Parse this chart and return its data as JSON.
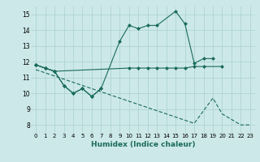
{
  "xlabel": "Humidex (Indice chaleur)",
  "bg_color": "#cce8e8",
  "grid_color": "#aad0d0",
  "line_color": "#1a6b5a",
  "xlim": [
    -0.5,
    23.5
  ],
  "ylim": [
    7.5,
    15.5
  ],
  "yticks": [
    8,
    9,
    10,
    11,
    12,
    13,
    14,
    15
  ],
  "xticks": [
    0,
    1,
    2,
    3,
    4,
    5,
    6,
    7,
    8,
    9,
    10,
    11,
    12,
    13,
    14,
    15,
    16,
    17,
    18,
    19,
    20,
    21,
    22,
    23
  ],
  "line1_x": [
    0,
    1,
    2,
    3,
    4,
    5,
    6,
    7,
    9,
    10,
    11,
    12,
    13,
    15,
    16,
    17,
    18,
    19
  ],
  "line1_y": [
    11.8,
    11.6,
    11.4,
    10.5,
    10.0,
    10.3,
    9.8,
    10.3,
    13.3,
    14.3,
    14.1,
    14.3,
    14.3,
    15.2,
    14.4,
    11.9,
    12.2,
    12.2
  ],
  "line2_x": [
    0,
    1,
    2,
    10,
    11,
    12,
    13,
    14,
    15,
    16,
    17,
    18,
    20
  ],
  "line2_y": [
    11.8,
    11.6,
    11.4,
    11.6,
    11.6,
    11.6,
    11.6,
    11.6,
    11.6,
    11.6,
    11.7,
    11.7,
    11.7
  ],
  "line3_x": [
    0,
    1,
    2,
    3,
    4,
    5,
    6,
    7
  ],
  "line3_y": [
    11.8,
    11.6,
    11.4,
    10.5,
    10.0,
    10.3,
    9.8,
    10.3
  ],
  "line4_x": [
    0,
    1,
    2,
    3,
    4,
    5,
    6,
    7,
    8,
    9,
    10,
    11,
    12,
    13,
    14,
    15,
    16,
    17,
    19,
    20,
    22,
    23
  ],
  "line4_y": [
    11.5,
    11.3,
    11.1,
    10.9,
    10.7,
    10.5,
    10.3,
    10.1,
    9.9,
    9.7,
    9.5,
    9.3,
    9.1,
    8.9,
    8.7,
    8.5,
    8.3,
    8.1,
    9.7,
    8.7,
    8.0,
    8.0
  ]
}
